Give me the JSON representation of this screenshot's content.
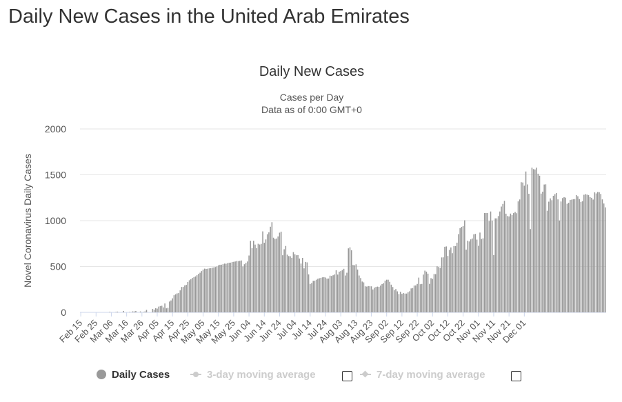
{
  "page": {
    "title": "Daily New Cases in the United Arab Emirates"
  },
  "legend": {
    "daily_cases": "Daily Cases",
    "three_day": "3-day moving average",
    "seven_day": "7-day moving average"
  },
  "chart_data": {
    "type": "bar",
    "title": "Daily New Cases",
    "subtitle_lines": [
      "Cases per Day",
      "Data as of 0:00 GMT+0"
    ],
    "xlabel": "",
    "ylabel": "Novel Coronavirus Daily Cases",
    "ylim": [
      0,
      2000
    ],
    "yticks": [
      0,
      500,
      1000,
      1500,
      2000
    ],
    "grid": true,
    "legend_position": "bottom",
    "bar_color": "#999999",
    "x_start": "Feb 15",
    "x_tick_labels": [
      "Feb 15",
      "Feb 25",
      "Mar 06",
      "Mar 16",
      "Mar 26",
      "Apr 05",
      "Apr 15",
      "Apr 25",
      "May 05",
      "May 15",
      "May 25",
      "Jun 04",
      "Jun 14",
      "Jun 24",
      "Jul 04",
      "Jul 14",
      "Jul 24",
      "Aug 03",
      "Aug 13",
      "Aug 23",
      "Sep 02",
      "Sep 12",
      "Sep 22",
      "Oct 02",
      "Oct 12",
      "Oct 22",
      "Nov 01",
      "Nov 11",
      "Nov 21",
      "Dec 01"
    ],
    "series": [
      {
        "values": [
          0,
          0,
          0,
          0,
          0,
          0,
          0,
          0,
          0,
          0,
          0,
          0,
          0,
          0,
          0,
          0,
          0,
          0,
          0,
          6,
          0,
          0,
          0,
          4,
          8,
          0,
          0,
          0,
          15,
          0,
          0,
          0,
          5,
          0,
          11,
          10,
          15,
          0,
          0,
          10,
          0,
          5,
          10,
          27,
          0,
          0,
          0,
          37,
          30,
          45,
          41,
          63,
          69,
          72,
          54,
          97,
          44,
          49,
          118,
          130,
          153,
          187,
          197,
          207,
          210,
          240,
          277,
          277,
          294,
          300,
          331,
          350,
          361,
          375,
          383,
          392,
          405,
          420,
          432,
          450,
          467,
          477,
          474,
          476,
          480,
          482,
          487,
          490,
          495,
          500,
          513,
          519,
          520,
          525,
          532,
          530,
          537,
          541,
          542,
          549,
          551,
          555,
          560,
          559,
          562,
          566,
          500,
          525,
          540,
          555,
          620,
          780,
          700,
          781,
          739,
          701,
          748,
          740,
          747,
          883,
          759,
          795,
          852,
          873,
          934,
          983,
          814,
          800,
          805,
          828,
          869,
          880,
          623,
          688,
          724,
          629,
          614,
          612,
          595,
          657,
          633,
          623,
          624,
          587,
          532,
          594,
          480,
          550,
          545,
          414,
          310,
          320,
          344,
          345,
          356,
          366,
          372,
          376,
          382,
          384,
          380,
          368,
          369,
          400,
          397,
          405,
          413,
          459,
          412,
          444,
          450,
          461,
          475,
          402,
          432,
          698,
          709,
          677,
          517,
          514,
          524,
          467,
          402,
          374,
          336,
          327,
          284,
          281,
          287,
          285,
          284,
          250,
          269,
          277,
          281,
          278,
          292,
          309,
          318,
          346,
          356,
          356,
          333,
          302,
          276,
          242,
          254,
          229,
          200,
          225,
          202,
          210,
          205,
          205,
          220,
          230,
          261,
          265,
          292,
          293,
          310,
          379,
          307,
          310,
          412,
          455,
          444,
          422,
          311,
          373,
          365,
          418,
          417,
          502,
          495,
          485,
          599,
          600,
          715,
          719,
          615,
          681,
          708,
          645,
          723,
          722,
          760,
          853,
          918,
          932,
          940,
          1004,
          684,
          781,
          773,
          796,
          806,
          851,
          856,
          793,
          726,
          870,
          800,
          807,
          1083,
          1083,
          1083,
          996,
          1100,
          1001,
          625,
          1025,
          1025,
          1050,
          1100,
          1154,
          1182,
          1216,
          1076,
          1050,
          1046,
          1077,
          1061,
          1082,
          1095,
          1081,
          1210,
          1231,
          1419,
          1416,
          1381,
          1536,
          1395,
          1293,
          908,
          1578,
          1562,
          1558,
          1578,
          1512,
          1490,
          1295,
          1316,
          1394,
          1396,
          1108,
          1207,
          1243,
          1223,
          1271,
          1289,
          1301,
          1232,
          1002,
          1209,
          1246,
          1256,
          1251,
          1184,
          1195,
          1225,
          1229,
          1233,
          1235,
          1278,
          1266,
          1235,
          1205,
          1212,
          1282,
          1289,
          1284,
          1278,
          1256,
          1249,
          1230,
          1309,
          1297,
          1313,
          1310,
          1291,
          1232,
          1187,
          1145
        ]
      }
    ]
  }
}
